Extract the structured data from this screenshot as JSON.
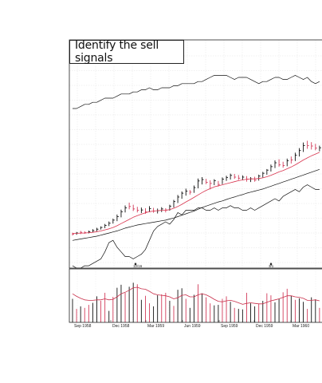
{
  "chart_data": {
    "type": "line",
    "title": "Identify the sell signals",
    "x_tick_labels": [
      "Sep 1958",
      "Dec 1958",
      "Mar 1959",
      "Jun 1959",
      "Sep 1959",
      "Dec 1959",
      "Mar 1960"
    ],
    "event_markers": [
      "12/16",
      "3/1"
    ],
    "price_ohlc": [
      {
        "h": 1.0,
        "l": 0.2,
        "c": 0.6,
        "up": 0
      },
      {
        "h": 1.2,
        "l": 0.4,
        "c": 0.9,
        "up": 1
      },
      {
        "h": 1.5,
        "l": 0.6,
        "c": 1.1,
        "up": 0
      },
      {
        "h": 1.4,
        "l": 0.7,
        "c": 1.0,
        "up": 0
      },
      {
        "h": 1.6,
        "l": 0.8,
        "c": 1.3,
        "up": 1
      },
      {
        "h": 2.0,
        "l": 1.1,
        "c": 1.6,
        "up": 1
      },
      {
        "h": 2.4,
        "l": 1.4,
        "c": 2.0,
        "up": 1
      },
      {
        "h": 2.8,
        "l": 1.9,
        "c": 2.5,
        "up": 1
      },
      {
        "h": 3.5,
        "l": 2.3,
        "c": 3.1,
        "up": 1
      },
      {
        "h": 4.2,
        "l": 2.9,
        "c": 3.7,
        "up": 1
      },
      {
        "h": 5.0,
        "l": 3.6,
        "c": 4.6,
        "up": 1
      },
      {
        "h": 6.2,
        "l": 4.3,
        "c": 5.6,
        "up": 1
      },
      {
        "h": 7.6,
        "l": 5.4,
        "c": 7.0,
        "up": 1
      },
      {
        "h": 8.8,
        "l": 6.8,
        "c": 8.1,
        "up": 1
      },
      {
        "h": 9.6,
        "l": 7.7,
        "c": 8.5,
        "up": 0
      },
      {
        "h": 9.0,
        "l": 7.2,
        "c": 7.8,
        "up": 0
      },
      {
        "h": 8.4,
        "l": 6.8,
        "c": 7.4,
        "up": 0
      },
      {
        "h": 8.2,
        "l": 6.6,
        "c": 7.5,
        "up": 1
      },
      {
        "h": 8.0,
        "l": 6.4,
        "c": 7.0,
        "up": 0
      },
      {
        "h": 8.6,
        "l": 6.9,
        "c": 7.9,
        "up": 1
      },
      {
        "h": 8.1,
        "l": 6.7,
        "c": 7.2,
        "up": 0
      },
      {
        "h": 7.9,
        "l": 6.5,
        "c": 7.3,
        "up": 1
      },
      {
        "h": 8.3,
        "l": 6.9,
        "c": 7.8,
        "up": 1
      },
      {
        "h": 8.0,
        "l": 6.8,
        "c": 7.5,
        "up": 0
      },
      {
        "h": 9.0,
        "l": 7.3,
        "c": 8.6,
        "up": 1
      },
      {
        "h": 10.4,
        "l": 8.2,
        "c": 9.9,
        "up": 1
      },
      {
        "h": 11.8,
        "l": 9.5,
        "c": 11.2,
        "up": 1
      },
      {
        "h": 12.8,
        "l": 10.7,
        "c": 12.3,
        "up": 1
      },
      {
        "h": 13.6,
        "l": 11.6,
        "c": 12.9,
        "up": 1
      },
      {
        "h": 13.2,
        "l": 11.9,
        "c": 12.6,
        "up": 0
      },
      {
        "h": 14.5,
        "l": 12.4,
        "c": 13.9,
        "up": 1
      },
      {
        "h": 16.5,
        "l": 13.7,
        "c": 15.8,
        "up": 1
      },
      {
        "h": 16.9,
        "l": 14.8,
        "c": 16.2,
        "up": 1
      },
      {
        "h": 16.4,
        "l": 14.9,
        "c": 15.4,
        "up": 0
      },
      {
        "h": 16.0,
        "l": 13.4,
        "c": 15.1,
        "up": 0
      },
      {
        "h": 16.3,
        "l": 14.6,
        "c": 15.9,
        "up": 1
      },
      {
        "h": 15.8,
        "l": 14.2,
        "c": 14.8,
        "up": 0
      },
      {
        "h": 16.8,
        "l": 14.9,
        "c": 16.3,
        "up": 1
      },
      {
        "h": 17.3,
        "l": 15.8,
        "c": 16.8,
        "up": 1
      },
      {
        "h": 17.9,
        "l": 16.2,
        "c": 17.4,
        "up": 1
      },
      {
        "h": 17.8,
        "l": 16.4,
        "c": 16.9,
        "up": 0
      },
      {
        "h": 17.5,
        "l": 16.1,
        "c": 16.6,
        "up": 0
      },
      {
        "h": 17.4,
        "l": 16.0,
        "c": 16.9,
        "up": 1
      },
      {
        "h": 17.2,
        "l": 15.6,
        "c": 16.3,
        "up": 0
      },
      {
        "h": 16.9,
        "l": 15.5,
        "c": 16.4,
        "up": 1
      },
      {
        "h": 17.0,
        "l": 15.6,
        "c": 16.0,
        "up": 0
      },
      {
        "h": 17.6,
        "l": 15.9,
        "c": 17.2,
        "up": 1
      },
      {
        "h": 18.4,
        "l": 16.8,
        "c": 18.0,
        "up": 1
      },
      {
        "h": 19.2,
        "l": 17.6,
        "c": 18.9,
        "up": 1
      },
      {
        "h": 20.5,
        "l": 18.5,
        "c": 19.9,
        "up": 1
      },
      {
        "h": 21.7,
        "l": 19.5,
        "c": 21.0,
        "up": 1
      },
      {
        "h": 22.0,
        "l": 19.9,
        "c": 20.4,
        "up": 0
      },
      {
        "h": 21.3,
        "l": 19.6,
        "c": 20.2,
        "up": 0
      },
      {
        "h": 22.2,
        "l": 20.0,
        "c": 21.6,
        "up": 1
      },
      {
        "h": 22.8,
        "l": 20.8,
        "c": 21.8,
        "up": 0
      },
      {
        "h": 23.9,
        "l": 21.5,
        "c": 23.2,
        "up": 1
      },
      {
        "h": 25.2,
        "l": 22.8,
        "c": 24.5,
        "up": 1
      },
      {
        "h": 26.8,
        "l": 24.1,
        "c": 25.9,
        "up": 1
      },
      {
        "h": 27.3,
        "l": 25.0,
        "c": 25.9,
        "up": 0
      },
      {
        "h": 26.9,
        "l": 24.8,
        "c": 25.8,
        "up": 0
      },
      {
        "h": 26.4,
        "l": 24.6,
        "c": 25.2,
        "up": 0
      },
      {
        "h": 25.9,
        "l": 24.3,
        "c": 25.3,
        "up": 1
      }
    ],
    "red_ma": [
      0.8,
      0.8,
      0.9,
      0.9,
      1.0,
      1.1,
      1.3,
      1.5,
      1.8,
      2.1,
      2.5,
      3.0,
      3.6,
      4.2,
      4.8,
      5.4,
      5.9,
      6.3,
      6.7,
      7.0,
      7.2,
      7.3,
      7.4,
      7.4,
      7.6,
      8.0,
      8.5,
      9.1,
      9.8,
      10.4,
      11.1,
      11.8,
      12.5,
      13.1,
      13.6,
      14.1,
      14.4,
      14.7,
      15.0,
      15.3,
      15.6,
      15.9,
      16.1,
      16.3,
      16.4,
      16.4,
      16.5,
      16.7,
      17.0,
      17.4,
      17.9,
      18.4,
      18.8,
      19.3,
      19.8,
      20.4,
      21.1,
      21.8,
      22.4,
      23.0,
      23.5,
      24.0
    ],
    "black_ma": [
      -1.2,
      -1.0,
      -0.8,
      -0.6,
      -0.4,
      -0.2,
      0.0,
      0.3,
      0.6,
      0.9,
      1.2,
      1.5,
      1.9,
      2.3,
      2.6,
      2.9,
      3.2,
      3.4,
      3.6,
      3.8,
      4.0,
      4.2,
      4.4,
      4.6,
      4.9,
      5.2,
      5.6,
      6.0,
      6.4,
      6.8,
      7.2,
      7.7,
      8.2,
      8.6,
      9.0,
      9.4,
      9.8,
      10.1,
      10.5,
      10.9,
      11.2,
      11.6,
      11.9,
      12.3,
      12.6,
      12.9,
      13.2,
      13.5,
      13.9,
      14.3,
      14.7,
      15.1,
      15.5,
      15.9,
      16.3,
      16.7,
      17.1,
      17.5,
      17.9,
      18.3,
      18.7,
      19.1
    ],
    "relative_strength": [
      10,
      10,
      11,
      12,
      12,
      13,
      13,
      14,
      15,
      15,
      15,
      16,
      17,
      17,
      17,
      18,
      18,
      19,
      19,
      20,
      19,
      19,
      20,
      20,
      20,
      21,
      21,
      22,
      22,
      22,
      22,
      23,
      23,
      24,
      25,
      26,
      26,
      26,
      26,
      25,
      24,
      25,
      25,
      25,
      24,
      23,
      22,
      23,
      23,
      24,
      25,
      25,
      24,
      24,
      25,
      26,
      25,
      24,
      25,
      23,
      22,
      23
    ],
    "lower_indicator": [
      -12,
      -13,
      -13,
      -12,
      -12,
      -11,
      -10,
      -9,
      -6,
      -2,
      -1,
      -4,
      -6,
      -8,
      -8,
      -9,
      -8,
      -7,
      -5,
      -1,
      3,
      5,
      6,
      7,
      6,
      8,
      11,
      10,
      12,
      12,
      12,
      13,
      13,
      12,
      12,
      13,
      12,
      13,
      13,
      14,
      13,
      13,
      12,
      12,
      13,
      12,
      13,
      14,
      15,
      16,
      17,
      16,
      18,
      19,
      20,
      21,
      20,
      22,
      23,
      22,
      21,
      21
    ],
    "volume": [
      5.0,
      3.0,
      3.5,
      3.2,
      3.8,
      4.2,
      5.5,
      4.6,
      6.2,
      2.6,
      5.4,
      7.2,
      7.8,
      6.2,
      7.4,
      8.2,
      7.9,
      4.8,
      5.6,
      4.1,
      3.5,
      5.7,
      5.9,
      6.2,
      4.6,
      3.6,
      6.8,
      7.1,
      5.0,
      3.2,
      5.8,
      7.9,
      6.1,
      5.3,
      4.1,
      3.7,
      3.8,
      5.0,
      5.5,
      4.4,
      3.2,
      3.0,
      2.9,
      6.2,
      4.1,
      3.5,
      4.0,
      4.6,
      6.1,
      5.7,
      4.3,
      5.0,
      6.3,
      7.0,
      5.6,
      4.8,
      5.1,
      4.4,
      3.0,
      5.3,
      4.9,
      3.2
    ],
    "volume_ma": [
      6.0,
      5.5,
      5.1,
      4.8,
      4.7,
      4.7,
      4.8,
      4.8,
      5.0,
      4.8,
      4.9,
      5.4,
      6.0,
      6.3,
      6.7,
      7.2,
      7.3,
      7.0,
      6.9,
      6.5,
      6.0,
      5.8,
      5.7,
      5.6,
      5.4,
      5.0,
      5.2,
      5.7,
      5.8,
      5.4,
      5.4,
      5.8,
      6.0,
      5.8,
      5.4,
      4.9,
      4.5,
      4.4,
      4.6,
      4.7,
      4.5,
      4.2,
      3.9,
      4.1,
      4.2,
      4.1,
      4.0,
      4.0,
      4.3,
      4.6,
      4.8,
      5.0,
      5.3,
      5.6,
      5.6,
      5.4,
      5.3,
      5.1,
      4.7,
      4.7,
      4.8,
      4.6
    ],
    "volume_colors": "mixed black and red bars",
    "grid": true,
    "colors": {
      "price_up": "#111111",
      "price_down": "#d23b5a",
      "red_ma": "#d9354f",
      "black_ma": "#111111",
      "volume_ma": "#c9304b"
    }
  }
}
